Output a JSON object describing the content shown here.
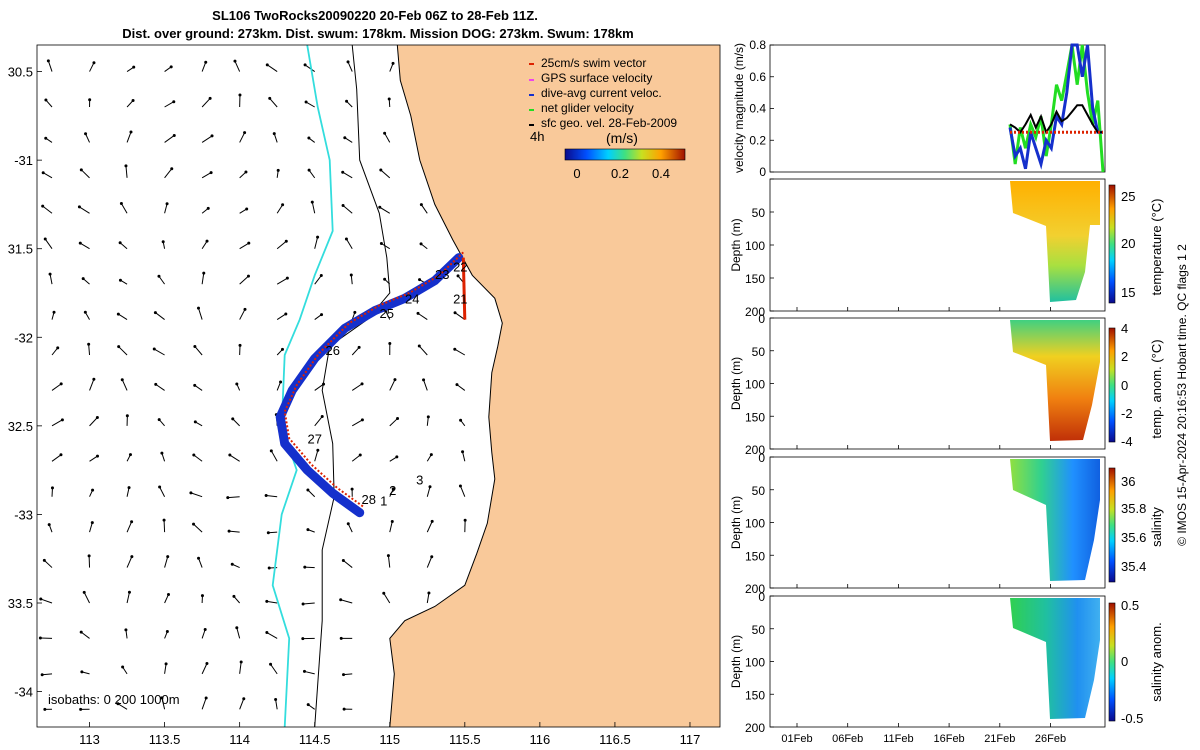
{
  "title_line1": "SL106 TwoRocks20090220 20-Feb 06Z to 28-Feb 11Z.",
  "title_line2": "Dist. over ground: 273km. Dist. swum: 178km. Mission DOG: 273km. Swum: 178km",
  "side_stamp": "© IMOS 15-Apr-2024 20:16:53 Hobart time. QC flags 1  2",
  "colors": {
    "land": "#F9C99A",
    "ocean": "#FFFFFF",
    "track_red": "#DD2200",
    "track_blue": "#1530CC",
    "isobath_200": "#000000",
    "isobath_1000": "#33DDDD",
    "net_green": "#22DD22",
    "sfc_black": "#000000"
  },
  "chart_data": [
    {
      "type": "map",
      "xlim": [
        112.65,
        117.2
      ],
      "ylim": [
        -34.2,
        -30.35
      ],
      "xticks": [
        113,
        113.5,
        114,
        114.5,
        115,
        115.5,
        116,
        116.5,
        117
      ],
      "xtick_labels": [
        "113",
        "113.5",
        "114",
        "114.5",
        "115",
        "115.5",
        "116",
        "116.5",
        "117"
      ],
      "yticks": [
        -30.5,
        -31,
        -31.5,
        -32,
        -32.5,
        -33,
        -33.5,
        -34
      ],
      "ytick_labels": [
        "30.5",
        "-31",
        "31.5",
        "-32",
        "32.5",
        "-33",
        "33.5",
        "-34"
      ],
      "legend": [
        {
          "label": "25cm/s swim vector",
          "color": "#DD2200"
        },
        {
          "label": "GPS surface velocity",
          "color": "#EE44EE"
        },
        {
          "label": "dive-avg current veloc.",
          "color": "#1530CC"
        },
        {
          "label": "net glider velocity",
          "color": "#22DD22"
        },
        {
          "label": "sfc geo. vel. 28-Feb-2009",
          "color": "#000000"
        }
      ],
      "legend_placement": "top-right",
      "colorbar": {
        "title": "(m/s)",
        "range": [
          0,
          0.5
        ],
        "ticks": [
          0,
          0.2,
          0.4
        ],
        "tick_labels": [
          "0",
          "0.2",
          "0.4"
        ]
      },
      "time_label": "4h",
      "isobath_label": "isobaths: 0   200  1000m",
      "glider_track": [
        [
          115.46,
          -31.55
        ],
        [
          115.3,
          -31.68
        ],
        [
          115.1,
          -31.78
        ],
        [
          114.9,
          -31.85
        ],
        [
          114.7,
          -31.95
        ],
        [
          114.5,
          -32.12
        ],
        [
          114.35,
          -32.3
        ],
        [
          114.27,
          -32.45
        ],
        [
          114.3,
          -32.6
        ],
        [
          114.45,
          -32.75
        ],
        [
          114.62,
          -32.88
        ],
        [
          114.8,
          -32.99
        ]
      ],
      "inner_track": [
        [
          115.49,
          -31.55
        ],
        [
          115.5,
          -31.9
        ]
      ],
      "day_labels": [
        {
          "text": "22",
          "x": 115.47,
          "y": -31.63
        },
        {
          "text": "23",
          "x": 115.35,
          "y": -31.67
        },
        {
          "text": "24",
          "x": 115.15,
          "y": -31.81
        },
        {
          "text": "25",
          "x": 114.98,
          "y": -31.89
        },
        {
          "text": "21",
          "x": 115.47,
          "y": -31.81
        },
        {
          "text": "26",
          "x": 114.62,
          "y": -32.1
        },
        {
          "text": "27",
          "x": 114.5,
          "y": -32.6
        },
        {
          "text": "28",
          "x": 114.86,
          "y": -32.94
        },
        {
          "text": "1",
          "x": 114.96,
          "y": -32.95
        },
        {
          "text": "2",
          "x": 115.02,
          "y": -32.89
        },
        {
          "text": "3",
          "x": 115.2,
          "y": -32.83
        }
      ],
      "coastline": [
        [
          115.05,
          -30.35
        ],
        [
          115.07,
          -30.55
        ],
        [
          115.14,
          -30.75
        ],
        [
          115.2,
          -31.0
        ],
        [
          115.3,
          -31.25
        ],
        [
          115.42,
          -31.45
        ],
        [
          115.55,
          -31.65
        ],
        [
          115.7,
          -31.78
        ],
        [
          115.75,
          -31.92
        ],
        [
          115.72,
          -32.05
        ],
        [
          115.68,
          -32.2
        ],
        [
          115.66,
          -32.45
        ],
        [
          115.68,
          -32.65
        ],
        [
          115.7,
          -32.8
        ],
        [
          115.65,
          -33.05
        ],
        [
          115.58,
          -33.22
        ],
        [
          115.5,
          -33.4
        ],
        [
          115.3,
          -33.52
        ],
        [
          115.1,
          -33.6
        ],
        [
          115.0,
          -33.7
        ],
        [
          115.03,
          -33.9
        ],
        [
          115.0,
          -34.2
        ]
      ],
      "isobath_200": [
        [
          114.75,
          -30.35
        ],
        [
          114.78,
          -30.6
        ],
        [
          114.8,
          -31.0
        ],
        [
          114.93,
          -31.3
        ],
        [
          114.98,
          -31.55
        ],
        [
          115.0,
          -31.75
        ],
        [
          114.85,
          -31.9
        ],
        [
          114.6,
          -32.05
        ],
        [
          114.55,
          -32.3
        ],
        [
          114.62,
          -32.6
        ],
        [
          114.63,
          -32.9
        ],
        [
          114.55,
          -33.2
        ],
        [
          114.55,
          -33.6
        ],
        [
          114.5,
          -34.2
        ]
      ],
      "isobath_1000": [
        [
          114.45,
          -30.35
        ],
        [
          114.52,
          -30.7
        ],
        [
          114.6,
          -31.0
        ],
        [
          114.62,
          -31.4
        ],
        [
          114.5,
          -31.65
        ],
        [
          114.4,
          -31.9
        ],
        [
          114.3,
          -32.1
        ],
        [
          114.28,
          -32.5
        ],
        [
          114.38,
          -32.75
        ],
        [
          114.28,
          -33.0
        ],
        [
          114.22,
          -33.4
        ],
        [
          114.33,
          -33.7
        ],
        [
          114.3,
          -34.2
        ]
      ]
    },
    {
      "type": "line",
      "ylabel": "velocity magnitude (m/s)",
      "ylim": [
        0,
        0.8
      ],
      "yticks": [
        0,
        0.2,
        0.4,
        0.6,
        0.8
      ],
      "ytick_labels": [
        "0",
        "0.2",
        "0.4",
        "0.6",
        "0.8"
      ],
      "x_day_range": [
        21,
        29
      ],
      "series": [
        {
          "color": "#22DD22",
          "values": [
            0.3,
            0.05,
            0.28,
            0.15,
            0.3,
            0.22,
            0.35,
            0.1,
            0.3,
            0.55,
            0.45,
            0.62,
            0.8,
            0.55,
            0.8,
            0.5,
            0.3,
            0.45,
            0.0
          ]
        },
        {
          "color": "#1530CC",
          "values": [
            0.28,
            0.1,
            0.15,
            0.02,
            0.25,
            0.15,
            0.05,
            0.2,
            0.15,
            0.35,
            0.3,
            0.5,
            0.8,
            0.8,
            0.6,
            0.8,
            0.4,
            0.25,
            0.25
          ]
        },
        {
          "color": "#000000",
          "values": [
            0.3,
            0.28,
            0.25,
            0.3,
            0.36,
            0.28,
            0.35,
            0.25,
            0.3,
            0.38,
            0.32,
            0.34,
            0.38,
            0.42,
            0.42,
            0.36,
            0.3,
            0.25,
            0.25
          ]
        },
        {
          "color": "#DD2200",
          "values": [
            0.25,
            0.25,
            0.25,
            0.25,
            0.25,
            0.25,
            0.25,
            0.25,
            0.25,
            0.25,
            0.25,
            0.25,
            0.25,
            0.25,
            0.25,
            0.25,
            0.25,
            0.25,
            0.25
          ]
        }
      ]
    },
    {
      "type": "heatmap",
      "ylabel": "Depth (m)",
      "ylim": [
        200,
        0
      ],
      "yticks": [
        0,
        50,
        100,
        150,
        200
      ],
      "ytick_labels": [
        "",
        "50",
        "100",
        "150",
        "200"
      ],
      "colorbar_label": "temperature (°C)",
      "colorbar_ticks": [
        "25",
        "20",
        "15"
      ],
      "colorbar_range": [
        14,
        25.5
      ]
    },
    {
      "type": "heatmap",
      "ylabel": "Depth (m)",
      "ylim": [
        200,
        0
      ],
      "yticks": [
        0,
        50,
        100,
        150,
        200
      ],
      "ytick_labels": [
        "0",
        "50",
        "100",
        "150",
        "200"
      ],
      "colorbar_label": "temp. anom. (°C)",
      "colorbar_ticks": [
        "4",
        "2",
        "0",
        "-2",
        "-4"
      ],
      "colorbar_range": [
        -4,
        4
      ]
    },
    {
      "type": "heatmap",
      "ylabel": "Depth (m)",
      "ylim": [
        200,
        0
      ],
      "yticks": [
        0,
        50,
        100,
        150,
        200
      ],
      "ytick_labels": [
        "0",
        "50",
        "100",
        "150",
        "200"
      ],
      "colorbar_label": "salinity",
      "colorbar_ticks": [
        "36",
        "35.8",
        "35.6",
        "35.4"
      ],
      "colorbar_range": [
        35.3,
        36.1
      ]
    },
    {
      "type": "heatmap",
      "ylabel": "Depth (m)",
      "ylim": [
        200,
        0
      ],
      "yticks": [
        0,
        50,
        100,
        150,
        200
      ],
      "ytick_labels": [
        "0",
        "50",
        "100",
        "150",
        "200"
      ],
      "colorbar_label": "salinity anom.",
      "colorbar_ticks": [
        "0.5",
        "0",
        "-0.5"
      ],
      "colorbar_range": [
        -0.5,
        0.5
      ],
      "xticks": [
        "01Feb",
        "06Feb",
        "11Feb",
        "16Feb",
        "21Feb",
        "26Feb"
      ]
    }
  ]
}
